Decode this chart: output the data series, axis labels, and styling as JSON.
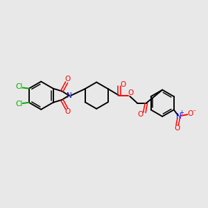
{
  "background_color": "#e8e8e8",
  "bond_color": "#000000",
  "atom_colors": {
    "O": "#ff0000",
    "N": "#0000ff",
    "Cl": "#00aa00",
    "C": "#000000"
  },
  "figsize": [
    3.0,
    3.0
  ],
  "dpi": 100
}
